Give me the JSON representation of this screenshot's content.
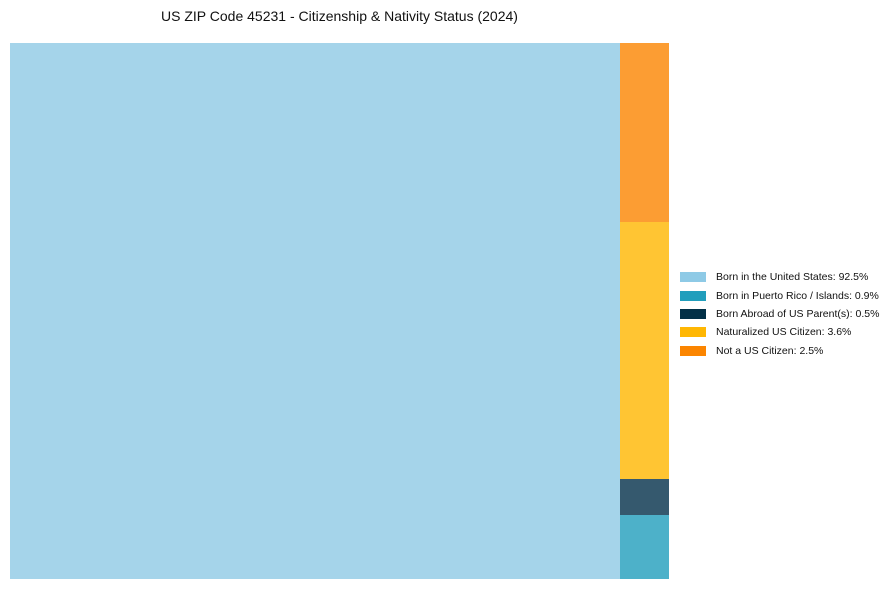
{
  "chart_data": {
    "type": "treemap",
    "title": "US ZIP Code 45231 - Citizenship & Nativity Status (2024)",
    "categories": [
      "Born in the United States",
      "Born in Puerto Rico / Islands",
      "Born Abroad of US Parent(s)",
      "Naturalized US Citizen",
      "Not a US Citizen"
    ],
    "values": [
      92.5,
      0.9,
      0.5,
      3.6,
      2.5
    ],
    "unit": "%",
    "colors": [
      "#8ecae6",
      "#219ebc",
      "#023047",
      "#ffb703",
      "#fb8500"
    ],
    "rect_colors": [
      "#a5d4ea",
      "#4db1c9",
      "#35596e",
      "#ffc533",
      "#fc9d33"
    ],
    "legend": [
      "Born in the United States: 92.5%",
      "Born in Puerto Rico / Islands: 0.9%",
      "Born Abroad of US Parent(s): 0.5%",
      "Naturalized US Citizen: 3.6%",
      "Not a US Citizen: 2.5%"
    ],
    "legend_position": "right"
  }
}
